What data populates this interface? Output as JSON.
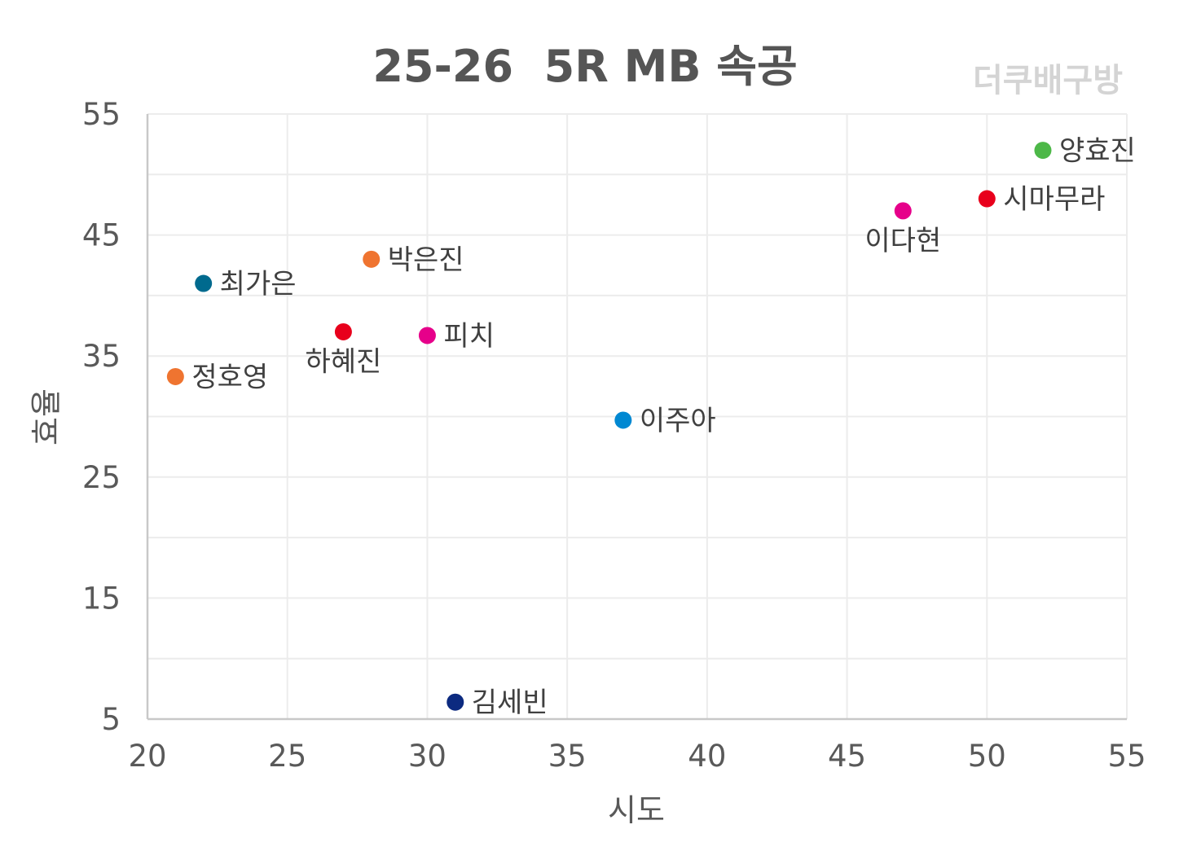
{
  "chart_data": {
    "type": "scatter",
    "title": "25-26  5R MB 속공",
    "watermark": "더쿠배구방",
    "xlabel": "시도",
    "ylabel": "효율",
    "xlim": [
      20,
      55
    ],
    "ylim": [
      5,
      55
    ],
    "x_ticks": [
      20,
      25,
      30,
      35,
      40,
      45,
      50,
      55
    ],
    "y_ticks": [
      5,
      15,
      25,
      35,
      45,
      55
    ],
    "y_minor_grid": [
      10,
      20,
      30,
      40,
      50
    ],
    "grid": true,
    "points": [
      {
        "label": "양효진",
        "x": 52,
        "y": 52,
        "color": "#4db848",
        "label_pos": "right"
      },
      {
        "label": "시마무라",
        "x": 50,
        "y": 48,
        "color": "#e8001c",
        "label_pos": "right"
      },
      {
        "label": "이다현",
        "x": 47,
        "y": 47,
        "color": "#e6008a",
        "label_pos": "below"
      },
      {
        "label": "박은진",
        "x": 28,
        "y": 43,
        "color": "#ef7430",
        "label_pos": "right"
      },
      {
        "label": "최가은",
        "x": 22,
        "y": 41,
        "color": "#006a8e",
        "label_pos": "right"
      },
      {
        "label": "하혜진",
        "x": 27,
        "y": 37,
        "color": "#e8001c",
        "label_pos": "below"
      },
      {
        "label": "피치",
        "x": 30,
        "y": 36.7,
        "color": "#e6008a",
        "label_pos": "right"
      },
      {
        "label": "정호영",
        "x": 21,
        "y": 33.3,
        "color": "#ef7430",
        "label_pos": "right"
      },
      {
        "label": "이주아",
        "x": 37,
        "y": 29.7,
        "color": "#0088d2",
        "label_pos": "right"
      },
      {
        "label": "김세빈",
        "x": 31,
        "y": 6.4,
        "color": "#0c2a80",
        "label_pos": "right"
      }
    ]
  }
}
